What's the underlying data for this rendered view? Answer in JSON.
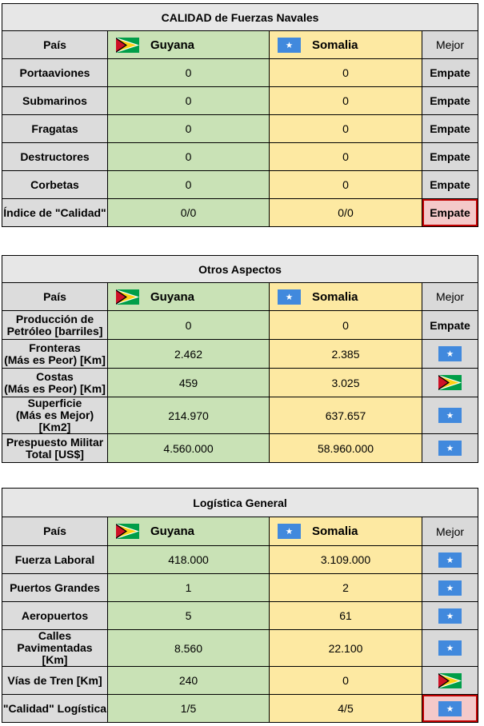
{
  "flags": {
    "guyana": {
      "name": "guyana-flag-icon",
      "green": "#009e49",
      "yellow": "#fcd116",
      "red": "#ce1126"
    },
    "somalia": {
      "name": "somalia-flag-icon",
      "blue": "#4189dd",
      "star": "#ffffff"
    }
  },
  "header": {
    "pais": "País",
    "guyana": "Guyana",
    "somalia": "Somalia",
    "mejor": "Mejor"
  },
  "naval": {
    "title": "CALIDAD de Fuerzas Navales",
    "rows": [
      {
        "label": "Portaaviones",
        "guyana": "0",
        "somalia": "0",
        "best": "Empate"
      },
      {
        "label": "Submarinos",
        "guyana": "0",
        "somalia": "0",
        "best": "Empate"
      },
      {
        "label": "Fragatas",
        "guyana": "0",
        "somalia": "0",
        "best": "Empate"
      },
      {
        "label": "Destructores",
        "guyana": "0",
        "somalia": "0",
        "best": "Empate"
      },
      {
        "label": "Corbetas",
        "guyana": "0",
        "somalia": "0",
        "best": "Empate"
      }
    ],
    "summary": {
      "label": "Índice de \"Calidad\"",
      "guyana": "0/0",
      "somalia": "0/0",
      "best": "Empate"
    }
  },
  "otros": {
    "title": "Otros Aspectos",
    "rows": [
      {
        "label": "Producción de\nPetróleo [barriles]",
        "guyana": "0",
        "somalia": "0",
        "best": "Empate"
      },
      {
        "label": "Fronteras\n(Más es Peor) [Km]",
        "guyana": "2.462",
        "somalia": "2.385",
        "best_flag": "somalia"
      },
      {
        "label": "Costas\n(Más es Peor) [Km]",
        "guyana": "459",
        "somalia": "3.025",
        "best_flag": "guyana"
      },
      {
        "label": "Superficie\n(Más es Mejor) [Km2]",
        "guyana": "214.970",
        "somalia": "637.657",
        "best_flag": "somalia"
      },
      {
        "label": "Prespuesto Militar\nTotal [US$]",
        "guyana": "4.560.000",
        "somalia": "58.960.000",
        "best_flag": "somalia"
      }
    ]
  },
  "logistica": {
    "title": "Logística General",
    "rows": [
      {
        "label": "Fuerza Laboral",
        "guyana": "418.000",
        "somalia": "3.109.000",
        "best_flag": "somalia"
      },
      {
        "label": "Puertos Grandes",
        "guyana": "1",
        "somalia": "2",
        "best_flag": "somalia"
      },
      {
        "label": "Aeropuertos",
        "guyana": "5",
        "somalia": "61",
        "best_flag": "somalia"
      },
      {
        "label": "Calles Pavimentadas\n[Km]",
        "guyana": "8.560",
        "somalia": "22.100",
        "best_flag": "somalia"
      },
      {
        "label": "Vías de Tren [Km]",
        "guyana": "240",
        "somalia": "0",
        "best_flag": "guyana"
      }
    ],
    "summary": {
      "label": "\"Calidad\" Logística",
      "guyana": "1/5",
      "somalia": "4/5",
      "best_flag": "somalia"
    }
  }
}
